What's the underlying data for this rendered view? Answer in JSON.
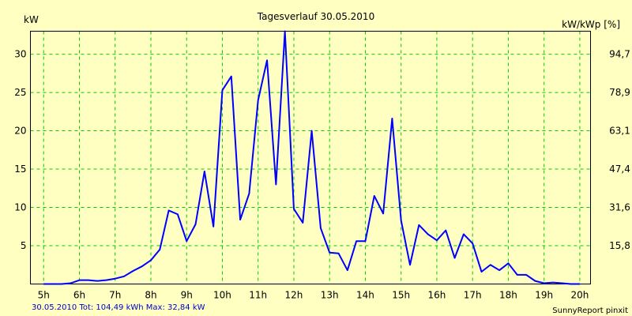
{
  "chart_data": {
    "type": "line",
    "title": "Tagesverlauf 30.05.2010",
    "ylabel_left": "kW",
    "ylabel_right": "kW/kWp [%]",
    "ylim": [
      0,
      33
    ],
    "y_ticks_left": [
      "5",
      "10",
      "15",
      "20",
      "25",
      "30"
    ],
    "y_ticks_right": [
      "15,8",
      "31,6",
      "47,4",
      "63,1",
      "78,9",
      "94,7"
    ],
    "x_ticks": [
      "5h",
      "6h",
      "7h",
      "8h",
      "9h",
      "10h",
      "11h",
      "12h",
      "13h",
      "14h",
      "15h",
      "16h",
      "17h",
      "18h",
      "19h",
      "20h"
    ],
    "xlim": [
      4.63,
      20.3
    ],
    "grid": true,
    "colors": {
      "background": "#ffffc1",
      "grid": "#00cc00",
      "line": "#0000ff",
      "footer_left": "#0000cc"
    },
    "series": [
      {
        "x": [
          5.0,
          5.25,
          5.5,
          5.75,
          6.0,
          6.25,
          6.5,
          6.75,
          7.0,
          7.25,
          7.5,
          7.75,
          8.0,
          8.25,
          8.5,
          8.75,
          9.0,
          9.25,
          9.5,
          9.75,
          10.0,
          10.25,
          10.5,
          10.75,
          11.0,
          11.25,
          11.5,
          11.75,
          12.0,
          12.25,
          12.5,
          12.75,
          13.0,
          13.25,
          13.5,
          13.75,
          14.0,
          14.25,
          14.5,
          14.75,
          15.0,
          15.25,
          15.5,
          15.75,
          16.0,
          16.25,
          16.5,
          16.75,
          17.0,
          17.25,
          17.5,
          17.75,
          18.0,
          18.25,
          18.5,
          18.75,
          19.0,
          19.25,
          19.5,
          19.75,
          20.0
        ],
        "values": [
          0,
          0,
          0,
          0.1,
          0.5,
          0.5,
          0.4,
          0.5,
          0.7,
          1.0,
          1.7,
          2.3,
          3.1,
          4.5,
          9.6,
          9.1,
          5.6,
          7.8,
          14.7,
          7.5,
          25.3,
          27.1,
          8.4,
          11.8,
          24.0,
          29.2,
          13.0,
          33.0,
          9.8,
          8.0,
          20.0,
          7.3,
          4.1,
          4.0,
          1.8,
          5.6,
          5.6,
          11.5,
          9.2,
          21.6,
          8.3,
          2.5,
          7.7,
          6.5,
          5.7,
          7.0,
          3.4,
          6.5,
          5.3,
          1.6,
          2.5,
          1.8,
          2.7,
          1.2,
          1.2,
          0.4,
          0.1,
          0.2,
          0.1,
          0,
          0
        ]
      }
    ],
    "footer_left": "30.05.2010 Tot: 104,49 kWh Max: 32,84 kW",
    "footer_right": "SunnyReport pinxit"
  }
}
